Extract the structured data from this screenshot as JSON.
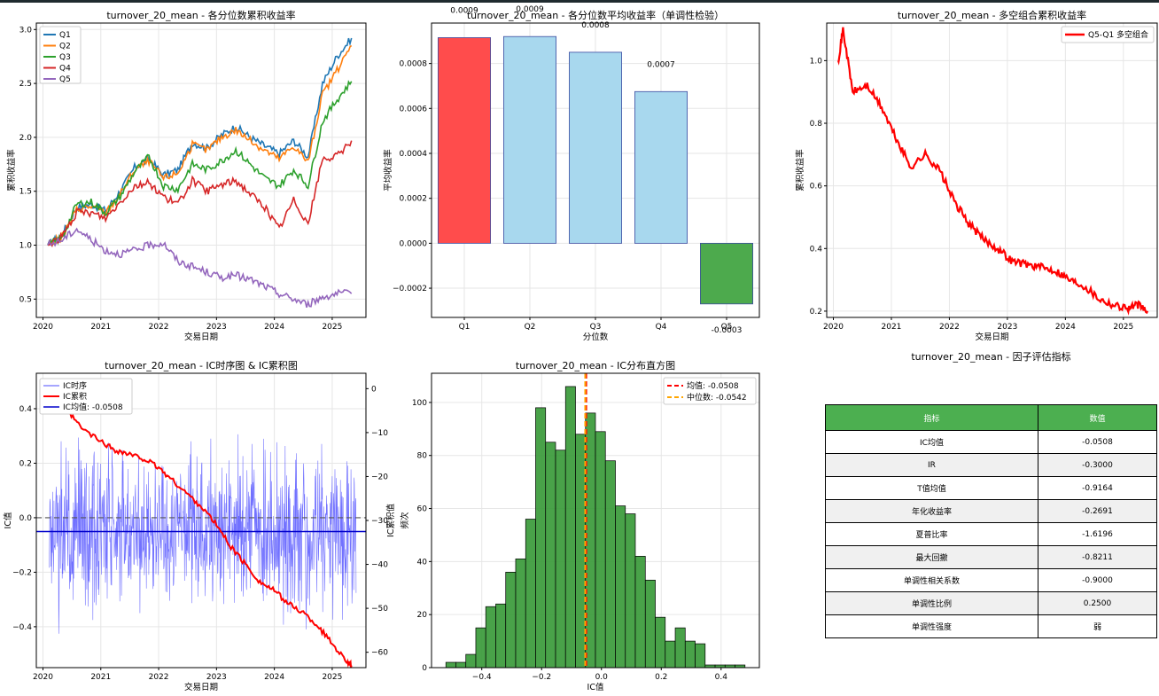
{
  "chart_data": [
    {
      "type": "line",
      "title": "turnover_20_mean - 各分位数累积收益率",
      "xlabel": "交易日期",
      "ylabel": "累积收益率",
      "xlim": [
        "2019-11-20",
        "2025-08-01"
      ],
      "ylim": [
        0.33,
        3.06
      ],
      "grid": true,
      "legend": "top-left",
      "x_ticks": [
        "2020",
        "2021",
        "2022",
        "2023",
        "2024",
        "2025"
      ],
      "y_ticks": [
        0.5,
        1.0,
        1.5,
        2.0,
        2.5,
        3.0
      ],
      "series": [
        {
          "name": "Q1",
          "color": "#1f77b4",
          "x": [
            "2020-02",
            "2020-05",
            "2020-08",
            "2020-11",
            "2021-02",
            "2021-05",
            "2021-08",
            "2021-11",
            "2022-02",
            "2022-05",
            "2022-08",
            "2022-11",
            "2023-02",
            "2023-05",
            "2023-08",
            "2023-11",
            "2024-02",
            "2024-05",
            "2024-08",
            "2024-11",
            "2025-02",
            "2025-05"
          ],
          "values": [
            1.0,
            1.1,
            1.35,
            1.38,
            1.32,
            1.5,
            1.72,
            1.8,
            1.65,
            1.7,
            1.95,
            1.9,
            2.02,
            2.1,
            2.0,
            1.92,
            1.85,
            1.97,
            1.82,
            2.5,
            2.75,
            2.92
          ]
        },
        {
          "name": "Q2",
          "color": "#ff7f0e",
          "x": [
            "2020-02",
            "2020-05",
            "2020-08",
            "2020-11",
            "2021-02",
            "2021-05",
            "2021-08",
            "2021-11",
            "2022-02",
            "2022-05",
            "2022-08",
            "2022-11",
            "2023-02",
            "2023-05",
            "2023-08",
            "2023-11",
            "2024-02",
            "2024-05",
            "2024-08",
            "2024-11",
            "2025-02",
            "2025-05"
          ],
          "values": [
            1.0,
            1.08,
            1.33,
            1.36,
            1.3,
            1.47,
            1.7,
            1.78,
            1.62,
            1.67,
            1.93,
            1.88,
            2.0,
            2.07,
            1.97,
            1.88,
            1.8,
            1.92,
            1.77,
            2.4,
            2.62,
            2.85
          ]
        },
        {
          "name": "Q3",
          "color": "#2ca02c",
          "x": [
            "2020-02",
            "2020-05",
            "2020-08",
            "2020-11",
            "2021-02",
            "2021-05",
            "2021-08",
            "2021-11",
            "2022-02",
            "2022-05",
            "2022-08",
            "2022-11",
            "2023-02",
            "2023-05",
            "2023-08",
            "2023-11",
            "2024-02",
            "2024-05",
            "2024-08",
            "2024-11",
            "2025-02",
            "2025-05"
          ],
          "values": [
            1.0,
            1.07,
            1.38,
            1.4,
            1.3,
            1.45,
            1.68,
            1.82,
            1.55,
            1.52,
            1.75,
            1.7,
            1.78,
            1.88,
            1.75,
            1.62,
            1.55,
            1.7,
            1.55,
            2.15,
            2.35,
            2.52
          ]
        },
        {
          "name": "Q4",
          "color": "#d62728",
          "x": [
            "2020-02",
            "2020-05",
            "2020-08",
            "2020-11",
            "2021-02",
            "2021-05",
            "2021-08",
            "2021-11",
            "2022-02",
            "2022-05",
            "2022-08",
            "2022-11",
            "2023-02",
            "2023-05",
            "2023-08",
            "2023-11",
            "2024-02",
            "2024-05",
            "2024-08",
            "2024-11",
            "2025-02",
            "2025-05"
          ],
          "values": [
            1.0,
            1.08,
            1.3,
            1.3,
            1.25,
            1.4,
            1.55,
            1.58,
            1.45,
            1.38,
            1.6,
            1.5,
            1.56,
            1.6,
            1.48,
            1.35,
            1.15,
            1.42,
            1.2,
            1.8,
            1.82,
            1.97
          ]
        },
        {
          "name": "Q5",
          "color": "#9467bd",
          "x": [
            "2020-02",
            "2020-05",
            "2020-08",
            "2020-11",
            "2021-02",
            "2021-05",
            "2021-08",
            "2021-11",
            "2022-02",
            "2022-05",
            "2022-08",
            "2022-11",
            "2023-02",
            "2023-05",
            "2023-08",
            "2023-11",
            "2024-02",
            "2024-05",
            "2024-08",
            "2024-11",
            "2025-02",
            "2025-05"
          ],
          "values": [
            1.0,
            1.05,
            1.15,
            1.05,
            0.95,
            0.92,
            0.95,
            1.0,
            1.02,
            0.85,
            0.8,
            0.75,
            0.7,
            0.72,
            0.68,
            0.62,
            0.55,
            0.5,
            0.45,
            0.52,
            0.55,
            0.55
          ]
        }
      ]
    },
    {
      "type": "bar",
      "title": "turnover_20_mean - 各分位数平均收益率（单调性检验）",
      "xlabel": "分位数",
      "ylabel": "平均收益率",
      "categories": [
        "Q1",
        "Q2",
        "Q3",
        "Q4",
        "Q5"
      ],
      "values": [
        0.000915,
        0.00092,
        0.00085,
        0.000675,
        -0.00027
      ],
      "data_labels": [
        "0.0009",
        "0.0009",
        "0.0008",
        "0.0007",
        "-0.0003"
      ],
      "colors": [
        "#ff4c4c",
        "#a8d8ee",
        "#a8d8ee",
        "#a8d8ee",
        "#4daa4d"
      ],
      "ylim": [
        -0.00033,
        0.00098
      ],
      "y_ticks": [
        "−0.0002",
        "0.0000",
        "0.0002",
        "0.0004",
        "0.0006",
        "0.0008"
      ],
      "grid": true
    },
    {
      "type": "line",
      "title": "turnover_20_mean - 多空组合累积收益率",
      "xlabel": "交易日期",
      "ylabel": "累积收益率",
      "xlim": [
        "2019-11-20",
        "2025-08-01"
      ],
      "ylim": [
        0.18,
        1.12
      ],
      "grid": true,
      "legend": "top-right",
      "x_ticks": [
        "2020",
        "2021",
        "2022",
        "2023",
        "2024",
        "2025"
      ],
      "y_ticks": [
        0.2,
        0.4,
        0.6,
        0.8,
        1.0
      ],
      "series": [
        {
          "name": "Q5-Q1 多空组合",
          "color": "#ff0000",
          "x": [
            "2020-02",
            "2020-03",
            "2020-05",
            "2020-08",
            "2020-11",
            "2021-02",
            "2021-05",
            "2021-08",
            "2021-11",
            "2022-02",
            "2022-05",
            "2022-08",
            "2022-11",
            "2023-02",
            "2023-05",
            "2023-08",
            "2023-11",
            "2024-02",
            "2024-05",
            "2024-08",
            "2024-11",
            "2025-02",
            "2025-04",
            "2025-06"
          ],
          "values": [
            1.0,
            1.1,
            0.9,
            0.92,
            0.85,
            0.75,
            0.66,
            0.7,
            0.65,
            0.55,
            0.48,
            0.43,
            0.4,
            0.36,
            0.35,
            0.34,
            0.33,
            0.3,
            0.28,
            0.24,
            0.22,
            0.21,
            0.22,
            0.2
          ]
        }
      ]
    },
    {
      "type": "line",
      "title": "turnover_20_mean - IC时序图 & IC累积图",
      "xlabel": "交易日期",
      "ylabel": "IC值",
      "ylabel_right": "IC累积值",
      "xlim": [
        "2019-11-20",
        "2025-08-01"
      ],
      "ylim": [
        -0.55,
        0.53
      ],
      "ylim_right": [
        -63.5,
        3.5
      ],
      "grid": true,
      "legend": "top-left",
      "x_ticks": [
        "2020",
        "2021",
        "2022",
        "2023",
        "2024",
        "2025"
      ],
      "y_ticks": [
        "−0.4",
        "−0.2",
        "0.0",
        "0.2",
        "0.4"
      ],
      "y_ticks_right": [
        "−60",
        "−50",
        "−40",
        "−30",
        "−20",
        "−10",
        "0"
      ],
      "series": [
        {
          "name": "IC时序",
          "color": "#4d4dff",
          "mean": -0.0508,
          "std": 0.17,
          "start": "2020-02-10",
          "end": "2025-05-30"
        },
        {
          "name": "IC累积",
          "color": "#ff0000",
          "x": [
            "2020-02",
            "2020-03",
            "2020-06",
            "2020-09",
            "2021-01",
            "2021-04",
            "2021-07",
            "2021-10",
            "2022-01",
            "2022-04",
            "2022-07",
            "2022-10",
            "2023-01",
            "2023-04",
            "2023-07",
            "2023-10",
            "2024-01",
            "2024-04",
            "2024-07",
            "2024-10",
            "2025-01",
            "2025-04",
            "2025-05"
          ],
          "values": [
            0,
            -1,
            -5,
            -9,
            -12,
            -14,
            -15,
            -16,
            -18,
            -21,
            -24,
            -27,
            -31,
            -36,
            -40,
            -44,
            -46,
            -49,
            -51,
            -54,
            -58,
            -62,
            -63
          ]
        },
        {
          "name": "IC均值: -0.0508",
          "color": "#0000cc",
          "values": [
            -0.0508
          ]
        }
      ],
      "zero_line": true
    },
    {
      "type": "bar",
      "title": "turnover_20_mean - IC分布直方图",
      "xlabel": "IC值",
      "ylabel": "频次",
      "bin_edges": [
        -0.52,
        -0.4867,
        -0.4533,
        -0.42,
        -0.3867,
        -0.3533,
        -0.32,
        -0.2867,
        -0.2533,
        -0.22,
        -0.1867,
        -0.1533,
        -0.12,
        -0.0867,
        -0.0533,
        -0.02,
        0.0133,
        0.0467,
        0.08,
        0.1133,
        0.1467,
        0.18,
        0.2133,
        0.2467,
        0.28,
        0.3133,
        0.3467,
        0.38,
        0.4133,
        0.4467,
        0.48
      ],
      "values": [
        2,
        2,
        5,
        15,
        23,
        24,
        36,
        41,
        56,
        98,
        85,
        82,
        106,
        88,
        96,
        89,
        78,
        61,
        58,
        42,
        33,
        19,
        10,
        15,
        10,
        9,
        1,
        1,
        1,
        1
      ],
      "mean_line": -0.0508,
      "median_line": -0.0542,
      "legend_labels": [
        "均值: -0.0508",
        "中位数: -0.0542"
      ],
      "ylim": [
        0,
        111
      ],
      "x_ticks": [
        "−0.4",
        "−0.2",
        "0.0",
        "0.2",
        "0.4"
      ],
      "y_ticks": [
        0,
        20,
        40,
        60,
        80,
        100
      ],
      "grid": true,
      "legend": "top-right"
    }
  ],
  "metrics_table": {
    "title": "turnover_20_mean - 因子评估指标",
    "headers": [
      "指标",
      "数值"
    ],
    "rows": [
      [
        "IC均值",
        "-0.0508"
      ],
      [
        "IR",
        "-0.3000"
      ],
      [
        "T值均值",
        "-0.9164"
      ],
      [
        "年化收益率",
        "-0.2691"
      ],
      [
        "夏普比率",
        "-1.6196"
      ],
      [
        "最大回撤",
        "-0.8211"
      ],
      [
        "单调性相关系数",
        "-0.9000"
      ],
      [
        "单调性比例",
        "0.2500"
      ],
      [
        "单调性强度",
        "弱"
      ]
    ],
    "header_color": "#4caf50",
    "alt_row_color": "#f0f0f0"
  }
}
